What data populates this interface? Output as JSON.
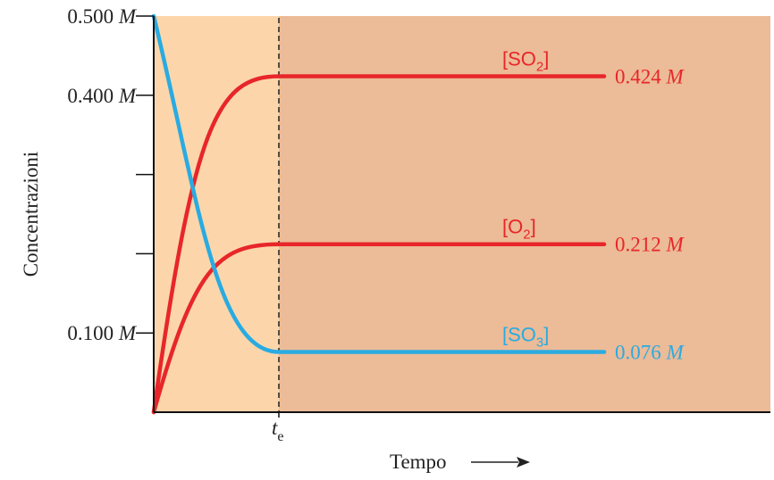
{
  "chart_data": {
    "type": "line",
    "xlabel": "Tempo",
    "ylabel": "Concentrazioni",
    "ylim": [
      0,
      0.5
    ],
    "yticks": [
      0,
      0.1,
      0.2,
      0.3,
      0.4,
      0.5
    ],
    "ytick_labels": [
      {
        "value": 0.5,
        "number": "0.500",
        "unit": "M"
      },
      {
        "value": 0.4,
        "number": "0.400",
        "unit": "M"
      },
      {
        "value": 0.1,
        "number": "0.100",
        "unit": "M"
      }
    ],
    "equilibrium_marker": {
      "label": "t",
      "subscript": "e"
    },
    "series": [
      {
        "name": "[SO2]",
        "color": "#e8262a",
        "start": 0.0,
        "end": 0.424,
        "end_label_number": "0.424",
        "end_label_unit": "M"
      },
      {
        "name": "[O2]",
        "color": "#e8262a",
        "start": 0.0,
        "end": 0.212,
        "end_label_number": "0.212",
        "end_label_unit": "M"
      },
      {
        "name": "[SO3]",
        "color": "#29abe2",
        "start": 0.5,
        "end": 0.076,
        "end_label_number": "0.076",
        "end_label_unit": "M"
      }
    ],
    "regions": {
      "pre_equilibrium_color": "#fcd6aa",
      "equilibrium_color": "#ecbb97"
    },
    "grid": false
  }
}
